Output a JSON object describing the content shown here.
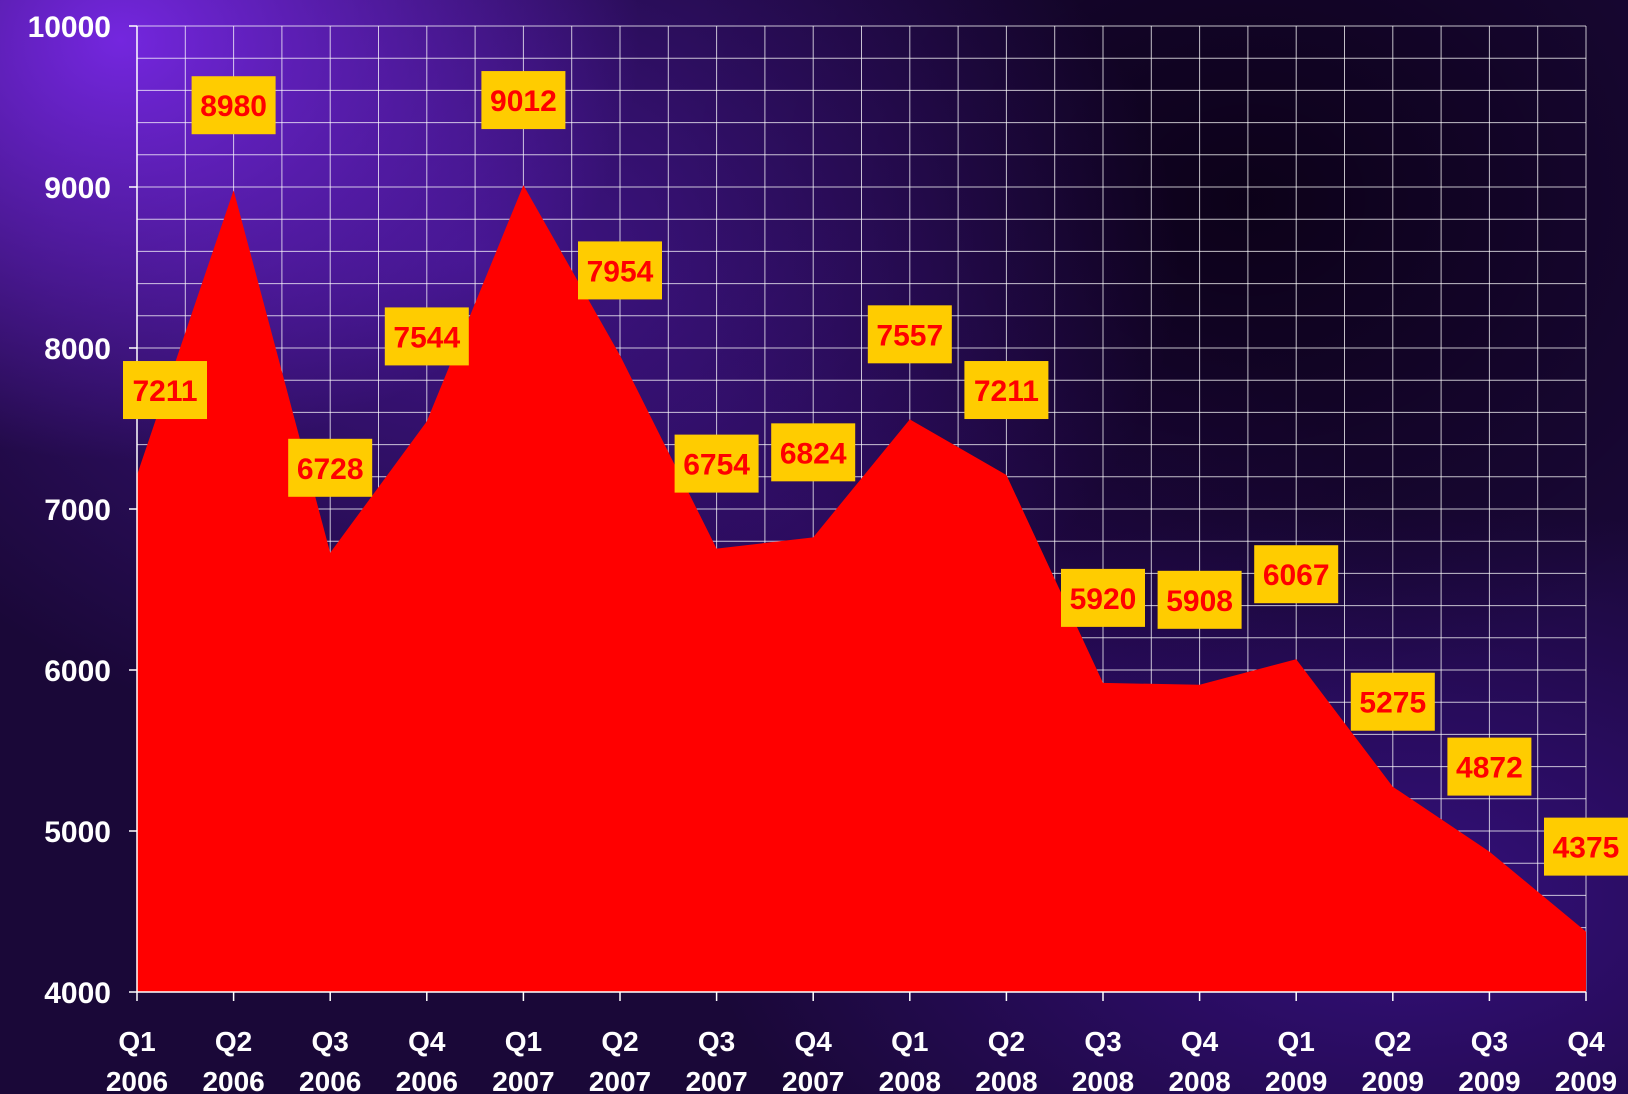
{
  "chart_data": {
    "type": "area",
    "categories": [
      [
        "Q1",
        "2006"
      ],
      [
        "Q2",
        "2006"
      ],
      [
        "Q3",
        "2006"
      ],
      [
        "Q4",
        "2006"
      ],
      [
        "Q1",
        "2007"
      ],
      [
        "Q2",
        "2007"
      ],
      [
        "Q3",
        "2007"
      ],
      [
        "Q4",
        "2007"
      ],
      [
        "Q1",
        "2008"
      ],
      [
        "Q2",
        "2008"
      ],
      [
        "Q3",
        "2008"
      ],
      [
        "Q4",
        "2008"
      ],
      [
        "Q1",
        "2009"
      ],
      [
        "Q2",
        "2009"
      ],
      [
        "Q3",
        "2009"
      ],
      [
        "Q4",
        "2009"
      ]
    ],
    "values": [
      7211,
      8980,
      6728,
      7544,
      9012,
      7954,
      6754,
      6824,
      7557,
      7211,
      5920,
      5908,
      6067,
      5275,
      4872,
      4375
    ],
    "ylim": [
      4000,
      10000
    ],
    "yticks": [
      "4000",
      "5000",
      "6000",
      "7000",
      "8000",
      "9000",
      "10000"
    ],
    "grid": true,
    "colors": {
      "area": "#ff0000",
      "label_box": "#ffcc00",
      "label_text": "#ff0000",
      "grid": "#ffffff",
      "axis_text": "#ffffff"
    }
  }
}
